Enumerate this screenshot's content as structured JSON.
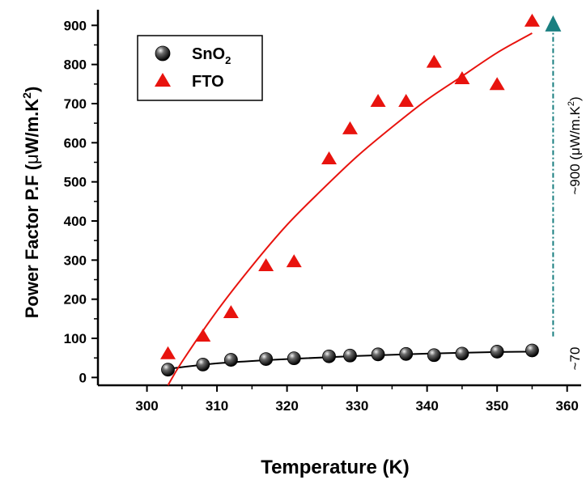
{
  "chart_data": {
    "type": "scatter",
    "xlabel": "Temperature (K)",
    "ylabel": {
      "main": "Power Factor P.F (",
      "mu": "μ",
      "unit": "W/m.K",
      "sup": "2",
      "close": ")"
    },
    "xlim": [
      293,
      362
    ],
    "ylim": [
      -20,
      940
    ],
    "xticks": [
      300,
      310,
      320,
      330,
      340,
      350,
      360
    ],
    "yticks": [
      0,
      100,
      200,
      300,
      400,
      500,
      600,
      700,
      800,
      900
    ],
    "grid": false,
    "legend_position": "top-left",
    "series": [
      {
        "name": "SnO",
        "name_sub": "2",
        "marker": "circle",
        "color": "#000000",
        "x": [
          303,
          308,
          312,
          317,
          321,
          326,
          329,
          333,
          337,
          341,
          345,
          350,
          355
        ],
        "y": [
          20,
          33,
          45,
          47,
          49,
          54,
          56,
          59,
          60,
          57,
          61,
          66,
          69
        ],
        "fit": {
          "x": [
            303,
            310,
            320,
            330,
            340,
            350,
            355
          ],
          "y": [
            22,
            36,
            47,
            55,
            61,
            65,
            66
          ]
        }
      },
      {
        "name": "FTO",
        "marker": "triangle",
        "color": "#e8130e",
        "x": [
          303,
          308,
          312,
          317,
          321,
          326,
          329,
          333,
          337,
          341,
          345,
          350,
          355
        ],
        "y": [
          60,
          105,
          165,
          285,
          295,
          558,
          635,
          705,
          705,
          805,
          763,
          748,
          910
        ],
        "fit": {
          "x": [
            303,
            305,
            310,
            315,
            320,
            325,
            330,
            335,
            340,
            345,
            350,
            355
          ],
          "y": [
            -20,
            40,
            170,
            285,
            390,
            480,
            565,
            640,
            710,
            770,
            830,
            880
          ]
        }
      }
    ],
    "annotation": {
      "top_label": {
        "prefix": "~900 (",
        "mu": "μ",
        "unit": "W/m.K",
        "sup": "2",
        "close": ")"
      },
      "bottom_label": "~70",
      "arrow_color": "#1a7f80",
      "arrow_x": 358,
      "from_y": 105,
      "to_y": 905
    }
  }
}
